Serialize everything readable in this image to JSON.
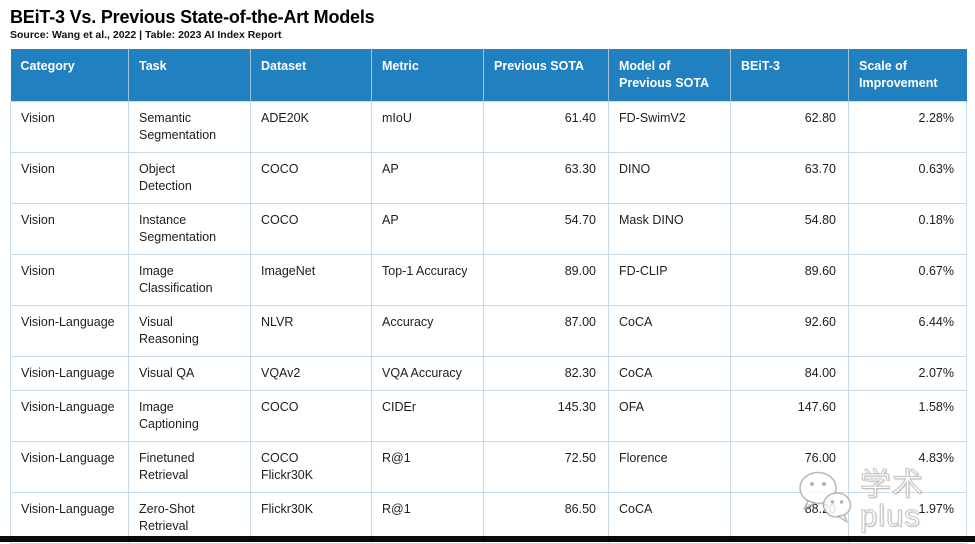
{
  "page": {
    "title": "BEiT-3 Vs. Previous State-of-the-Art Models",
    "source": "Source: Wang et al., 2022 | Table: 2023 AI Index Report"
  },
  "chart_data": {
    "type": "table",
    "title": "BEiT-3 Vs. Previous State-of-the-Art Models",
    "columns": [
      "Category",
      "Task",
      "Dataset",
      "Metric",
      "Previous SOTA",
      "Model of\nPrevious SOTA",
      "BEiT-3",
      "Scale of\nImprovement"
    ],
    "rows": [
      {
        "category": "Vision",
        "task": "Semantic\nSegmentation",
        "dataset": "ADE20K",
        "metric": "mIoU",
        "previous_sota": "61.40",
        "model_of_previous_sota": "FD-SwimV2",
        "beit3": "62.80",
        "scale_of_improvement": "2.28%"
      },
      {
        "category": "Vision",
        "task": "Object\nDetection",
        "dataset": "COCO",
        "metric": "AP",
        "previous_sota": "63.30",
        "model_of_previous_sota": "DINO",
        "beit3": "63.70",
        "scale_of_improvement": "0.63%"
      },
      {
        "category": "Vision",
        "task": "Instance\nSegmentation",
        "dataset": "COCO",
        "metric": "AP",
        "previous_sota": "54.70",
        "model_of_previous_sota": "Mask DINO",
        "beit3": "54.80",
        "scale_of_improvement": "0.18%"
      },
      {
        "category": "Vision",
        "task": "Image\nClassification",
        "dataset": "ImageNet",
        "metric": "Top-1 Accuracy",
        "previous_sota": "89.00",
        "model_of_previous_sota": "FD-CLIP",
        "beit3": "89.60",
        "scale_of_improvement": "0.67%"
      },
      {
        "category": "Vision-Language",
        "task": "Visual\nReasoning",
        "dataset": "NLVR",
        "metric": "Accuracy",
        "previous_sota": "87.00",
        "model_of_previous_sota": "CoCA",
        "beit3": "92.60",
        "scale_of_improvement": "6.44%"
      },
      {
        "category": "Vision-Language",
        "task": "Visual QA",
        "dataset": "VQAv2",
        "metric": "VQA Accuracy",
        "previous_sota": "82.30",
        "model_of_previous_sota": "CoCA",
        "beit3": "84.00",
        "scale_of_improvement": "2.07%"
      },
      {
        "category": "Vision-Language",
        "task": "Image\nCaptioning",
        "dataset": "COCO",
        "metric": "CIDEr",
        "previous_sota": "145.30",
        "model_of_previous_sota": "OFA",
        "beit3": "147.60",
        "scale_of_improvement": "1.58%"
      },
      {
        "category": "Vision-Language",
        "task": "Finetuned\nRetrieval",
        "dataset": "COCO\nFlickr30K",
        "metric": "R@1",
        "previous_sota": "72.50",
        "model_of_previous_sota": "Florence",
        "beit3": "76.00",
        "scale_of_improvement": "4.83%"
      },
      {
        "category": "Vision-Language",
        "task": "Zero-Shot\nRetrieval",
        "dataset": "Flickr30K",
        "metric": "R@1",
        "previous_sota": "86.50",
        "model_of_previous_sota": "CoCA",
        "beit3": "88.20",
        "scale_of_improvement": "1.97%"
      }
    ],
    "layout": {
      "header_bg": "#2180c0",
      "header_text_color": "#ffffff",
      "border_color": "#c9dbe9",
      "right_aligned_columns": [
        "Previous SOTA",
        "BEiT-3",
        "Scale of Improvement"
      ]
    }
  },
  "watermark": {
    "text": "学术plus",
    "icon": "wechat-icon"
  }
}
